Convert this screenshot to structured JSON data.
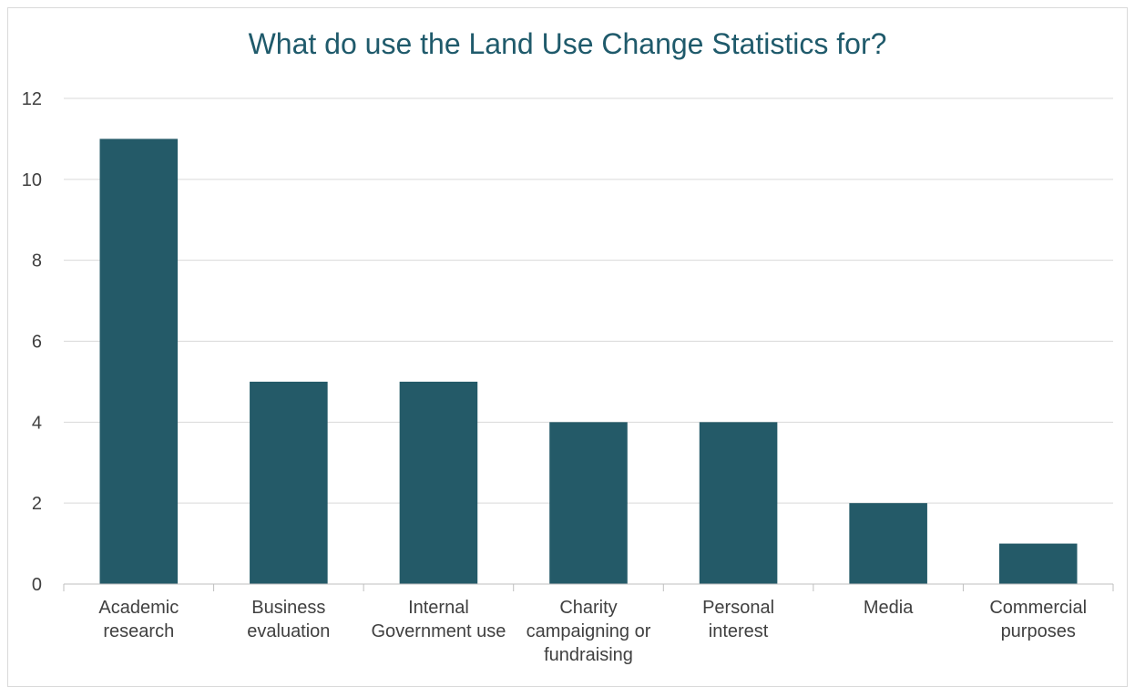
{
  "chart_data": {
    "type": "bar",
    "title": "What do use the Land Use Change Statistics for?",
    "categories": [
      [
        "Academic",
        "research"
      ],
      [
        "Business",
        "evaluation"
      ],
      [
        "Internal",
        "Government use"
      ],
      [
        "Charity",
        "campaigning or",
        "fundraising"
      ],
      [
        "Personal",
        "interest"
      ],
      [
        "Media"
      ],
      [
        "Commercial",
        "purposes"
      ]
    ],
    "values": [
      11,
      5,
      5,
      4,
      4,
      2,
      1
    ],
    "ylim": [
      0,
      12
    ],
    "yticks": [
      0,
      2,
      4,
      6,
      8,
      10,
      12
    ],
    "grid": true,
    "legend": "none",
    "colors": {
      "bar": "#245a68",
      "title": "#1f5a6b",
      "grid": "#d9d9d9",
      "axis": "#bfbfbf",
      "tick_text": "#404040"
    }
  }
}
